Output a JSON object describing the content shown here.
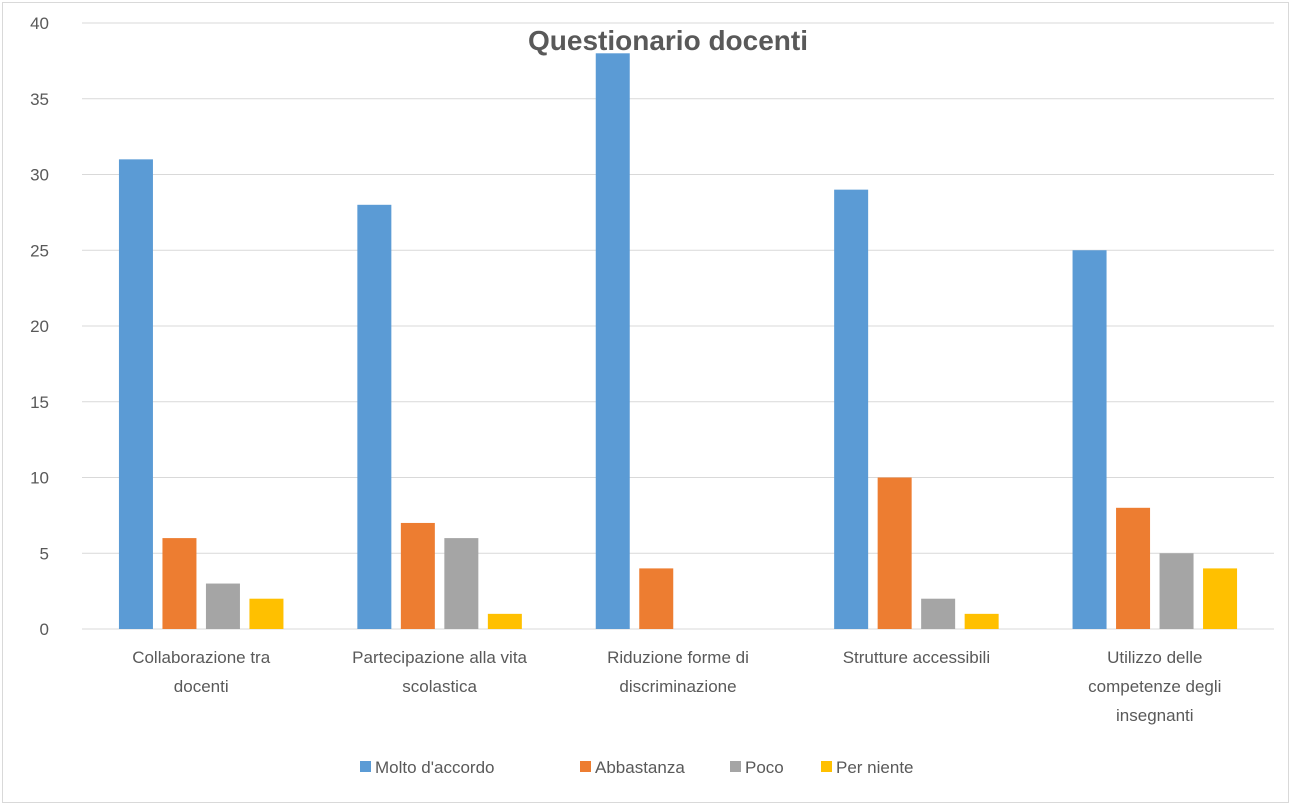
{
  "chart_data": {
    "type": "bar",
    "title": "Questionario docenti",
    "xlabel": "",
    "ylabel": "",
    "ylim": [
      0,
      40
    ],
    "yticks": [
      0,
      5,
      10,
      15,
      20,
      25,
      30,
      35,
      40
    ],
    "grid": true,
    "legend_position": "bottom",
    "categories": [
      [
        "Collaborazione tra",
        "docenti"
      ],
      [
        "Partecipazione alla vita",
        "scolastica"
      ],
      [
        "Riduzione forme di",
        "discriminazione"
      ],
      [
        "Strutture accessibili"
      ],
      [
        "Utilizzo delle",
        "competenze degli",
        "insegnanti"
      ]
    ],
    "series": [
      {
        "name": "Molto d'accordo",
        "color": "#5B9BD5",
        "values": [
          31,
          28,
          38,
          29,
          25
        ]
      },
      {
        "name": "Abbastanza",
        "color": "#ED7D31",
        "values": [
          6,
          7,
          4,
          10,
          8
        ]
      },
      {
        "name": "Poco",
        "color": "#A5A5A5",
        "values": [
          3,
          6,
          0,
          2,
          5
        ]
      },
      {
        "name": "Per niente",
        "color": "#FFC000",
        "values": [
          2,
          1,
          0,
          1,
          4
        ]
      }
    ]
  }
}
